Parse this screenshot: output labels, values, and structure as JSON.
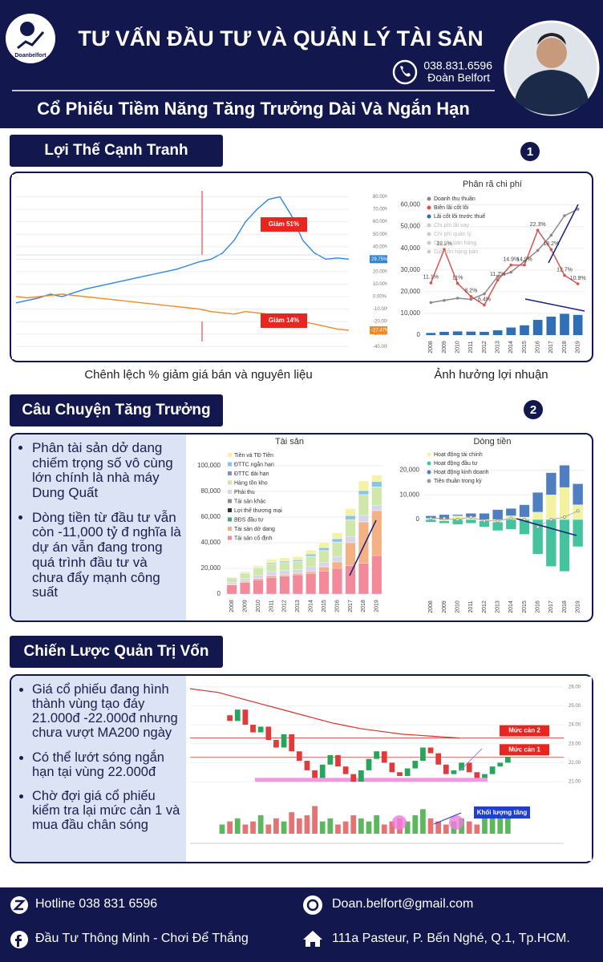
{
  "header": {
    "logo_text": "Doanbelfort",
    "title": "TƯ VẤN ĐẦU TƯ VÀ QUẢN LÝ TÀI SẢN",
    "phone": "038.831.6596",
    "name": "Đoàn Belfort",
    "subtitle": "Cổ Phiếu Tiềm Năng Tăng Trưởng Dài Và Ngắn Hạn"
  },
  "sections": [
    {
      "title": "Lợi Thế Cạnh Tranh",
      "badge": "1",
      "captions": [
        "Chênh lệch % giảm giá bán và nguyên liệu",
        "Ảnh hưởng lợi nhuận"
      ]
    },
    {
      "title": "Câu Chuyện Tăng Trưởng",
      "badge": "2",
      "bullets": [
        "Phân tài sản dở dang chiếm trọng số vô cùng lớn chính là nhà máy Dung Quất",
        "Dòng tiền từ đầu tư vẫn còn -11,000 tỷ đ nghĩa là dự án vẫn đang trong quá trình đầu tư và chưa đẩy mạnh công suất"
      ]
    },
    {
      "title": "Chiến Lược Quản Trị Vốn",
      "bullets": [
        "Giá cổ phiếu đang hình thành vùng tạo đáy 21.000đ -22.000đ nhưng chưa vượt MA200 ngày",
        "Có thể lướt sóng ngắn hạn tại vùng 22.000đ",
        "Chờ đợi giá cổ phiếu kiểm tra lại mức cản 1 và mua đầu chân sóng"
      ]
    }
  ],
  "chart_data": [
    {
      "type": "line",
      "ylim": [
        -45,
        90
      ],
      "yticks": [
        {
          "value": 80,
          "label": "80.00%"
        },
        {
          "value": 70,
          "label": "70.00%"
        },
        {
          "value": 60,
          "label": "60.00%"
        },
        {
          "value": 50,
          "label": "50.00%"
        },
        {
          "value": 40,
          "label": "40.00%"
        },
        {
          "value": 30,
          "label": "30.00%"
        },
        {
          "value": 20,
          "label": "20.00%"
        },
        {
          "value": 10,
          "label": "10.00%"
        },
        {
          "value": 0,
          "label": "0.00%"
        },
        {
          "value": -10,
          "label": "-10.00%"
        },
        {
          "value": -20,
          "label": "-20.00%"
        },
        {
          "value": -30,
          "label": "-30.00%"
        },
        {
          "value": -40,
          "label": "-40.00%"
        }
      ],
      "grid": true,
      "series": [
        {
          "color": "#2e86de",
          "values": [
            -5,
            -3,
            -1,
            2,
            0,
            3,
            6,
            8,
            10,
            12,
            14,
            16,
            18,
            20,
            22,
            25,
            28,
            30,
            35,
            45,
            60,
            70,
            78,
            80,
            65,
            45,
            35,
            30,
            31,
            30
          ],
          "end_label": "29.75%",
          "annotation": "Giảm 51%"
        },
        {
          "color": "#f08a24",
          "values": [
            0,
            -1,
            0,
            1,
            2,
            1,
            0,
            -1,
            -2,
            -3,
            -4,
            -5,
            -6,
            -7,
            -8,
            -9,
            -10,
            -12,
            -13,
            -14,
            -12,
            -13,
            -14,
            -15,
            -17,
            -20,
            -22,
            -24,
            -26,
            -27
          ],
          "end_label": "-27.47%",
          "annotation": "Giảm 14%"
        }
      ]
    },
    {
      "type": "combo",
      "title": "Phân rã chi phí",
      "categories": [
        "2008",
        "2009",
        "2010",
        "2011",
        "2012",
        "2013",
        "2014",
        "2015",
        "2016",
        "2017",
        "2018",
        "2019"
      ],
      "ylim": [
        0,
        65000
      ],
      "yticks": [
        0,
        {
          "value": 10000,
          "label": "10,000"
        },
        {
          "value": 20000,
          "label": "20,000"
        },
        {
          "value": 30000,
          "label": "30,000"
        },
        {
          "value": 40000,
          "label": "40,000"
        },
        {
          "value": 50000,
          "label": "50,000"
        },
        {
          "value": 60000,
          "label": "60,000"
        }
      ],
      "y2lim": [
        0,
        30
      ],
      "series": [
        {
          "name": "Doanh thu thuần",
          "color": "#8a8a8a",
          "kind": "line",
          "values": [
            15000,
            16000,
            17000,
            16500,
            19000,
            27000,
            29000,
            34000,
            39000,
            46000,
            55000,
            58000
          ]
        },
        {
          "name": "Biên lãi cốt lõi",
          "color": "#d9534f",
          "kind": "line",
          "axis": "y2",
          "values": [
            11.1,
            18.2,
            11,
            8.2,
            6.4,
            11.7,
            14.9,
            14.9,
            22.3,
            18.2,
            12.7,
            10.9
          ],
          "value_labels": [
            "11.1%",
            "18.2%",
            "11%",
            "8.2%",
            "6.4%",
            "11.7%",
            "14.9%",
            "14.9%",
            "22.3%",
            "18.2%",
            "12.7%",
            "10.9%"
          ]
        },
        {
          "name": "Lãi cốt lõi trước thuế",
          "color": "#2f6fb5",
          "kind": "bar",
          "values": [
            1000,
            1500,
            1700,
            1600,
            1500,
            2200,
            3500,
            4500,
            7000,
            8500,
            9800,
            9300
          ]
        }
      ],
      "hidden_series": [
        {
          "name": "Chi phí lãi vay"
        },
        {
          "name": "Chi phí quản lý"
        },
        {
          "name": "Chi phí bán hàng"
        },
        {
          "name": "Giá vốn hàng bán"
        }
      ]
    },
    {
      "type": "stacked-bar",
      "title": "Tài sản",
      "categories": [
        "2008",
        "2009",
        "2010",
        "2011",
        "2012",
        "2013",
        "2014",
        "2015",
        "2016",
        "2017",
        "2018",
        "2019"
      ],
      "ylim": [
        0,
        110000
      ],
      "yticks": [
        0,
        {
          "value": 20000,
          "label": "20,000"
        },
        {
          "value": 40000,
          "label": "40,000"
        },
        {
          "value": 60000,
          "label": "60,000"
        },
        {
          "value": 80000,
          "label": "80,000"
        },
        {
          "value": 100000,
          "label": "100,000"
        }
      ],
      "series": [
        {
          "name": "Tiền và TĐ Tiền",
          "color": "#f5f2a6",
          "values": [
            500,
            800,
            1500,
            2500,
            2500,
            2500,
            3000,
            4000,
            4500,
            5500,
            7500,
            5000
          ]
        },
        {
          "name": "ĐTTC ngắn hạn",
          "color": "#86c5ea",
          "values": [
            200,
            300,
            500,
            800,
            1000,
            1000,
            1500,
            2000,
            2500,
            3000,
            3000,
            4000
          ]
        },
        {
          "name": "ĐTTC dài hạn",
          "color": "#7f8fc8",
          "values": [
            300,
            300,
            300,
            300,
            300,
            300,
            300,
            300,
            300,
            300,
            300,
            300
          ]
        },
        {
          "name": "Hàng tồn kho",
          "color": "#cfe8a9",
          "values": [
            3000,
            4000,
            5000,
            6000,
            6000,
            6000,
            8000,
            9000,
            11000,
            13000,
            16000,
            14000
          ]
        },
        {
          "name": "Phải thu",
          "color": "#d5d5ec",
          "values": [
            1500,
            2000,
            2500,
            3000,
            3000,
            3000,
            3500,
            3500,
            4000,
            4500,
            5000,
            4000
          ]
        },
        {
          "name": "Tài sản khác",
          "color": "#8c8c8c",
          "values": [
            300,
            300,
            300,
            300,
            300,
            300,
            300,
            300,
            300,
            300,
            300,
            300
          ]
        },
        {
          "name": "Lợi thế thương mại",
          "color": "#333333",
          "values": [
            0,
            0,
            0,
            0,
            0,
            0,
            0,
            0,
            0,
            0,
            0,
            0
          ]
        },
        {
          "name": "BĐS đầu tư",
          "color": "#4fa07f",
          "values": [
            0,
            0,
            0,
            0,
            0,
            0,
            0,
            0,
            0,
            0,
            0,
            0
          ]
        },
        {
          "name": "Tài sản dở dang",
          "color": "#f4b183",
          "values": [
            500,
            800,
            1000,
            1200,
            1000,
            1000,
            1500,
            3000,
            5000,
            18000,
            32000,
            35000
          ]
        },
        {
          "name": "Tài sản cố định",
          "color": "#f28a9a",
          "values": [
            7000,
            9000,
            11000,
            13000,
            14000,
            15000,
            16000,
            18000,
            20000,
            22000,
            24000,
            30000
          ]
        }
      ]
    },
    {
      "type": "cashflow",
      "title": "Dòng tiền",
      "categories": [
        "2008",
        "2009",
        "2010",
        "2011",
        "2012",
        "2013",
        "2014",
        "2015",
        "2016",
        "2017",
        "2018",
        "2019"
      ],
      "ylim": [
        -25000,
        27000
      ],
      "yticks": [
        0,
        {
          "value": 10000,
          "label": "10,000"
        },
        {
          "value": 20000,
          "label": "20,000"
        }
      ],
      "series": [
        {
          "name": "Hoạt động tài chính",
          "color": "#f2f2a0",
          "values": [
            500,
            -500,
            1500,
            1000,
            -500,
            -1000,
            1500,
            1000,
            3000,
            10000,
            13000,
            6000
          ]
        },
        {
          "name": "Hoạt động đầu tư",
          "color": "#45c29e",
          "values": [
            -1000,
            -1000,
            -2000,
            -1500,
            -2500,
            -3500,
            -4000,
            -6000,
            -14000,
            -19000,
            -21000,
            -11000
          ]
        },
        {
          "name": "Hoạt động kinh doanh",
          "color": "#4f7fc1",
          "values": [
            1000,
            2000,
            500,
            1500,
            2500,
            4000,
            3000,
            5000,
            8000,
            9000,
            9000,
            8500
          ]
        },
        {
          "name": "Tiền thuần trong kỳ",
          "color": "#9a9a9a",
          "kind": "line",
          "values": [
            500,
            500,
            0,
            1000,
            -500,
            -500,
            500,
            0,
            -3000,
            0,
            1000,
            3500
          ]
        }
      ]
    },
    {
      "type": "candlestick",
      "ylim": [
        20.2,
        26.2
      ],
      "yticks": [
        {
          "value": 21,
          "label": "21.00"
        },
        {
          "value": 22,
          "label": "22.00"
        },
        {
          "value": 23,
          "label": "23.00"
        },
        {
          "value": 24,
          "label": "24.00"
        },
        {
          "value": 25,
          "label": "25.00"
        },
        {
          "value": 26,
          "label": "26.00"
        }
      ],
      "close": [
        24.5,
        24.2,
        24.8,
        24.0,
        23.6,
        23.9,
        23.2,
        22.8,
        23.5,
        22.6,
        22.1,
        21.6,
        21.2,
        21.9,
        22.4,
        21.8,
        21.4,
        21.0,
        21.6,
        22.2,
        22.6,
        22.0,
        21.5,
        21.3,
        21.7,
        22.1,
        22.8,
        22.5,
        21.9,
        21.4,
        21.6,
        22.0,
        21.5,
        21.2,
        21.4,
        21.8,
        22.0,
        22.3
      ],
      "volume": [
        3,
        4,
        5,
        3,
        4,
        6,
        3,
        5,
        4,
        7,
        5,
        6,
        9,
        4,
        5,
        3,
        4,
        6,
        5,
        4,
        6,
        3,
        4,
        5,
        4,
        6,
        8,
        5,
        4,
        3,
        4,
        5,
        4,
        3,
        5,
        6,
        7,
        8
      ],
      "volume_lim": [
        0,
        12
      ],
      "ma200": [
        25.9,
        25.8,
        25.7,
        25.5,
        25.3,
        25.1,
        24.9,
        24.7,
        24.5,
        24.3,
        24.1,
        23.95,
        23.8,
        23.7,
        23.6,
        23.5,
        23.45,
        23.4,
        23.35,
        23.3
      ],
      "levels": [
        {
          "label": "Mức cản 2",
          "value": 23.3
        },
        {
          "label": "Mức cản 1",
          "value": 22.3
        }
      ],
      "support": [
        21.0,
        21.2
      ],
      "volume_label": "Khối lượng tăng"
    }
  ],
  "footer": {
    "hotline": "Hotline 038 831 6596",
    "email": "Doan.belfort@gmail.com",
    "slogan": "Đầu Tư Thông Minh - Chơi Để Thắng",
    "address": "111a Pasteur, P. Bến Nghé, Q.1, Tp.HCM."
  }
}
